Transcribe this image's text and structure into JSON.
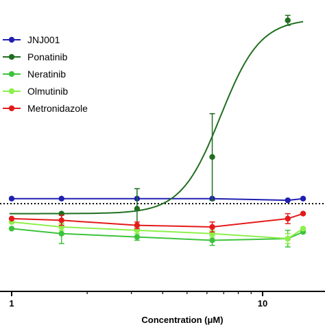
{
  "chart_data": {
    "type": "line",
    "x_scale": "log",
    "xlabel": "Concentration (μM)",
    "ylabel": "",
    "xlim": [
      0.98,
      14.5
    ],
    "ylim": [
      -55,
      120
    ],
    "x_ticks": [
      {
        "value": 1,
        "label": "1"
      },
      {
        "value": 10,
        "label": "10"
      }
    ],
    "reference_line": {
      "y": 0,
      "style": "dotted",
      "color": "#000000"
    },
    "legend": "top-left",
    "series": [
      {
        "name": "JNJ001",
        "color": "#1f1fb0",
        "x": [
          1,
          1.58,
          3.16,
          6.3,
          12.6,
          14.5
        ],
        "y": [
          3,
          3,
          3,
          3,
          2,
          3
        ],
        "err": [
          0,
          0,
          0,
          0,
          0,
          0
        ],
        "fit": "linear"
      },
      {
        "name": "Ponatinib",
        "color": "#1f6e1f",
        "x": [
          1.58,
          3.16,
          6.3,
          12.6
        ],
        "y": [
          -6,
          -3,
          28,
          110
        ],
        "err": [
          0,
          12,
          26,
          3
        ],
        "fit": {
          "type": "sigmoid",
          "bottom": -6,
          "top": 111,
          "ec50": 6.8,
          "hill": 5.5
        }
      },
      {
        "name": "Neratinib",
        "color": "#3cc33c",
        "x": [
          1,
          1.58,
          3.16,
          6.3,
          12.6,
          14.5
        ],
        "y": [
          -15,
          -18,
          -20,
          -22,
          -21,
          -17
        ],
        "err": [
          0,
          6,
          2,
          3,
          5,
          0
        ],
        "fit": "linear"
      },
      {
        "name": "Olmutinib",
        "color": "#8cf04a",
        "x": [
          1,
          1.58,
          3.16,
          6.3,
          12.6,
          14.5
        ],
        "y": [
          -11,
          -14,
          -16,
          -18,
          -21,
          -15
        ],
        "err": [
          0,
          2,
          2,
          2,
          3,
          0
        ],
        "fit": "linear"
      },
      {
        "name": "Metronidazole",
        "color": "#e41a1a",
        "x": [
          1,
          1.58,
          3.16,
          6.3,
          12.6,
          14.5
        ],
        "y": [
          -9,
          -10,
          -13,
          -14,
          -9,
          -6
        ],
        "err": [
          0,
          3,
          2,
          3,
          3,
          0
        ],
        "fit": "linear"
      }
    ]
  }
}
